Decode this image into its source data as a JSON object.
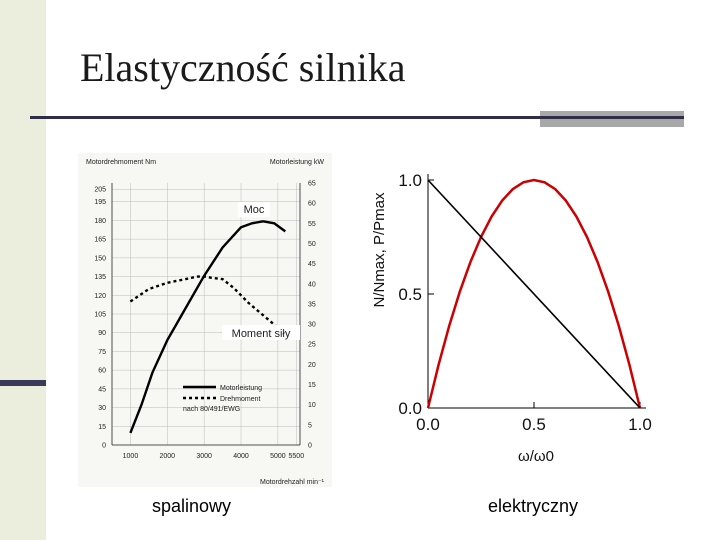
{
  "slide": {
    "title": "Elastyczność silnika",
    "caption_left": "spalinowy",
    "caption_right": "elektryczny"
  },
  "chart_data": [
    {
      "type": "line",
      "x_axis_label": "Motordrehzahl min⁻¹",
      "y_left_header": "Motordrehmoment Nm",
      "y_right_header": "Motorleistung kW",
      "x_ticks": [
        1000,
        2000,
        3000,
        4000,
        5000,
        5500
      ],
      "y_left_ticks": [
        0,
        15,
        30,
        45,
        60,
        75,
        90,
        105,
        120,
        135,
        150,
        165,
        180,
        195,
        205
      ],
      "y_right_ticks": [
        0,
        5,
        10,
        15,
        20,
        25,
        30,
        35,
        40,
        45,
        50,
        55,
        60,
        65
      ],
      "xlim": [
        500,
        5600
      ],
      "ylim_left": [
        0,
        210
      ],
      "ylim_right": [
        0,
        65
      ],
      "annotations": {
        "power": "Moc",
        "torque": "Moment siły"
      },
      "legend": [
        "Motorleistung",
        "Drehmoment",
        "nach 80/491/EWG"
      ],
      "legend_position": "bottom-left",
      "colors": {
        "line": "#000000",
        "axis": "#222222",
        "grid": "#bbbbbb"
      },
      "series": [
        {
          "name": "Motorleistung",
          "axis": "right",
          "style": "solid",
          "x": [
            1000,
            1300,
            1600,
            2000,
            2500,
            3000,
            3500,
            4000,
            4300,
            4600,
            4900,
            5200
          ],
          "y": [
            3,
            10,
            18,
            26,
            34,
            42,
            49,
            54,
            55,
            55.5,
            55,
            53
          ]
        },
        {
          "name": "Drehmoment",
          "axis": "left",
          "style": "dotted",
          "x": [
            1000,
            1500,
            2000,
            2500,
            2800,
            3000,
            3200,
            3500,
            3800,
            4200,
            4600,
            5000,
            5300
          ],
          "y": [
            115,
            125,
            130,
            133,
            135,
            135,
            134,
            133,
            126,
            114,
            104,
            94,
            86
          ]
        }
      ]
    },
    {
      "type": "line",
      "x_label": "ω/ω0",
      "y_label": "N/Nmax, P/Pmax",
      "x_ticks": [
        "0.0",
        "0.5",
        "1.0"
      ],
      "y_ticks": [
        "0.0",
        "0.5",
        "1.0"
      ],
      "xlim": [
        0,
        1
      ],
      "ylim": [
        0,
        1
      ],
      "colors": {
        "torque": "#000000",
        "power": "#cc0000"
      },
      "series": [
        {
          "name": "N/Nmax",
          "color": "#000000",
          "x": [
            0,
            1
          ],
          "y": [
            1,
            0
          ]
        },
        {
          "name": "P/Pmax",
          "color": "#cc0000",
          "x": [
            0,
            0.05,
            0.1,
            0.15,
            0.2,
            0.25,
            0.3,
            0.35,
            0.4,
            0.45,
            0.5,
            0.55,
            0.6,
            0.65,
            0.7,
            0.75,
            0.8,
            0.85,
            0.9,
            0.95,
            1
          ],
          "y": [
            0,
            0.19,
            0.36,
            0.51,
            0.64,
            0.75,
            0.84,
            0.91,
            0.96,
            0.99,
            1,
            0.99,
            0.96,
            0.91,
            0.84,
            0.75,
            0.64,
            0.51,
            0.36,
            0.19,
            0
          ]
        }
      ]
    }
  ]
}
